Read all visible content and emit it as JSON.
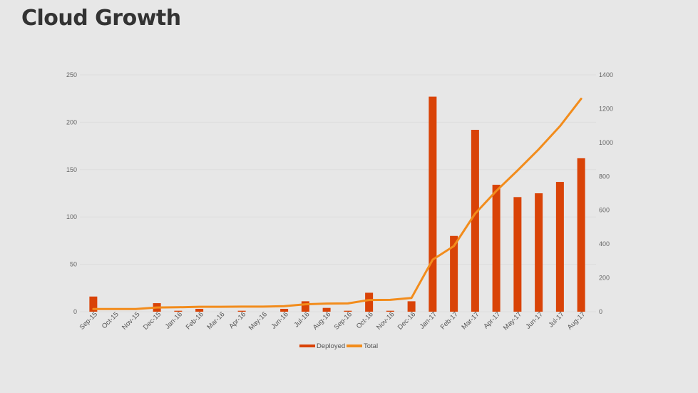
{
  "page_title": "Cloud Growth",
  "chart_data": {
    "type": "bar",
    "categories": [
      "Sep-15",
      "Oct-15",
      "Nov-15",
      "Dec-15",
      "Jan-16",
      "Feb-16",
      "Mar-16",
      "Apr-16",
      "May-16",
      "Jun-16",
      "Jul-16",
      "Aug-16",
      "Sep-16",
      "Oct-16",
      "Nov-16",
      "Dec-16",
      "Jan-17",
      "Feb-17",
      "Mar-17",
      "Apr-17",
      "May-17",
      "Jun-17",
      "Jul-17",
      "Aug-17"
    ],
    "series": [
      {
        "name": "Deployed",
        "type": "bar",
        "axis": "left",
        "color": "#d94307",
        "values": [
          16,
          0,
          0,
          9,
          1,
          3,
          0,
          1,
          0,
          3,
          11,
          4,
          1,
          20,
          1,
          11,
          227,
          80,
          192,
          134,
          121,
          125,
          137,
          162
        ]
      },
      {
        "name": "Total",
        "type": "line",
        "axis": "right",
        "color": "#f28c1c",
        "values": [
          16,
          16,
          16,
          25,
          26,
          29,
          29,
          30,
          30,
          33,
          44,
          48,
          49,
          69,
          70,
          81,
          308,
          388,
          580,
          714,
          835,
          960,
          1097,
          1259
        ]
      }
    ],
    "y_left": {
      "ylim": [
        0,
        250
      ],
      "ticks": [
        0,
        50,
        100,
        150,
        200,
        250
      ]
    },
    "y_right": {
      "ylim": [
        0,
        1400
      ],
      "ticks": [
        0,
        200,
        400,
        600,
        800,
        1000,
        1200,
        1400
      ]
    },
    "legend_position": "bottom",
    "grid": true
  }
}
